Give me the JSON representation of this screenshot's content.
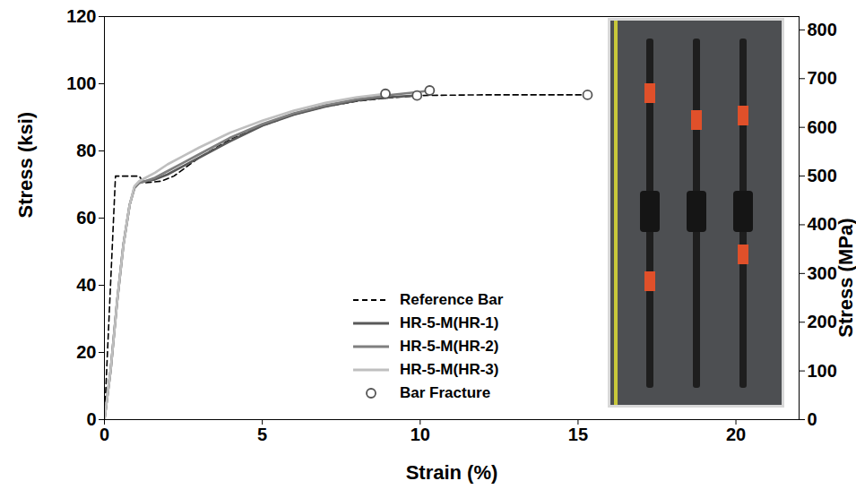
{
  "chart_data": {
    "type": "line",
    "x_label": "Strain (%)",
    "y_label": "Stress (ksi)",
    "y2_label": "Stress (MPa)",
    "xlim": [
      0,
      22
    ],
    "xticks": [
      0,
      5,
      10,
      15,
      20
    ],
    "ylim": [
      0,
      120
    ],
    "yticks": [
      0,
      20,
      40,
      60,
      80,
      100,
      120
    ],
    "y2lim": [
      0,
      827.4
    ],
    "y2ticks": [
      0,
      100,
      200,
      300,
      400,
      500,
      600,
      700,
      800
    ],
    "grid": false,
    "legend": "lower center",
    "series": [
      {
        "name": "Reference Bar",
        "color": "#000000",
        "line_style": "dashed",
        "x": [
          0,
          0.35,
          1.1,
          1.25,
          1.8,
          2.2,
          3,
          4,
          5,
          6,
          7,
          8,
          9,
          10,
          12,
          15.3
        ],
        "values": [
          0,
          72.5,
          72.5,
          70.5,
          71,
          72.5,
          78,
          83.5,
          87.5,
          90.8,
          93.2,
          94.8,
          95.8,
          96.5,
          96.7,
          96.7
        ]
      },
      {
        "name": "HR-5-M(HR-1)",
        "color": "#595959",
        "line_style": "solid",
        "x": [
          0,
          0.2,
          0.4,
          0.6,
          0.8,
          0.95,
          1.1,
          1.3,
          1.6,
          2,
          2.5,
          3,
          4,
          5,
          6,
          7,
          8,
          9,
          9.9
        ],
        "values": [
          0,
          15,
          35,
          52,
          64,
          69,
          70.5,
          71,
          71.5,
          73,
          75.5,
          78,
          83,
          87.5,
          90.8,
          93.2,
          95,
          96,
          96.5
        ]
      },
      {
        "name": "HR-5-M(HR-2)",
        "color": "#7f7f7f",
        "line_style": "solid",
        "x": [
          0,
          0.2,
          0.4,
          0.6,
          0.8,
          0.95,
          1.1,
          1.3,
          1.6,
          2,
          2.5,
          3,
          4,
          5,
          6,
          7,
          8,
          9,
          10,
          10.3
        ],
        "values": [
          0,
          15,
          35,
          52,
          64,
          69,
          70.5,
          71,
          72,
          74,
          76.5,
          79,
          84,
          88,
          91.2,
          93.6,
          95.4,
          96.6,
          97.6,
          98
        ]
      },
      {
        "name": "HR-5-M(HR-3)",
        "color": "#bfbfbf",
        "line_style": "solid",
        "x": [
          0,
          0.2,
          0.4,
          0.6,
          0.8,
          0.95,
          1.1,
          1.3,
          1.6,
          2,
          2.5,
          3,
          4,
          5,
          6,
          7,
          8,
          8.9
        ],
        "values": [
          0,
          15,
          35,
          52,
          64,
          69.5,
          71,
          72,
          73.5,
          76,
          78.5,
          81,
          85.5,
          89,
          92,
          94.3,
          96,
          97
        ]
      },
      {
        "name": "Bar Fracture",
        "type": "scatter",
        "marker": "circle",
        "color": "#555555",
        "x": [
          9.9,
          10.3,
          8.9,
          15.3
        ],
        "values": [
          96.5,
          98,
          97,
          96.7
        ]
      }
    ]
  }
}
